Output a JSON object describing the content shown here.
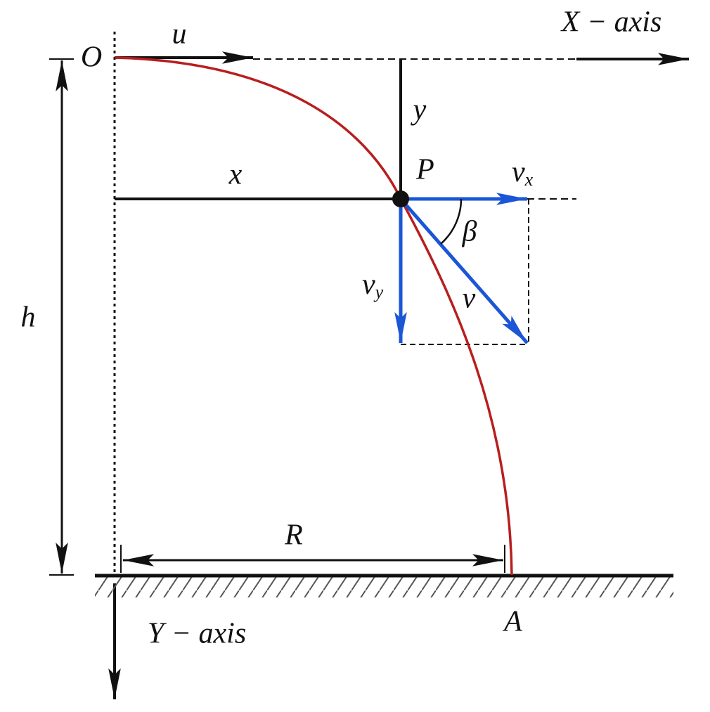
{
  "labels": {
    "x_axis": "X − axis",
    "y_axis": "Y − axis",
    "origin": "O",
    "initial_velocity": "u",
    "vertical_distance": "y",
    "horizontal_distance": "x",
    "point": "P",
    "velocity_x": {
      "main": "v",
      "sub": "x"
    },
    "angle": "β",
    "velocity_y": {
      "main": "v",
      "sub": "y"
    },
    "velocity": "v",
    "height": "h",
    "range": "R",
    "landing_point": "A"
  }
}
